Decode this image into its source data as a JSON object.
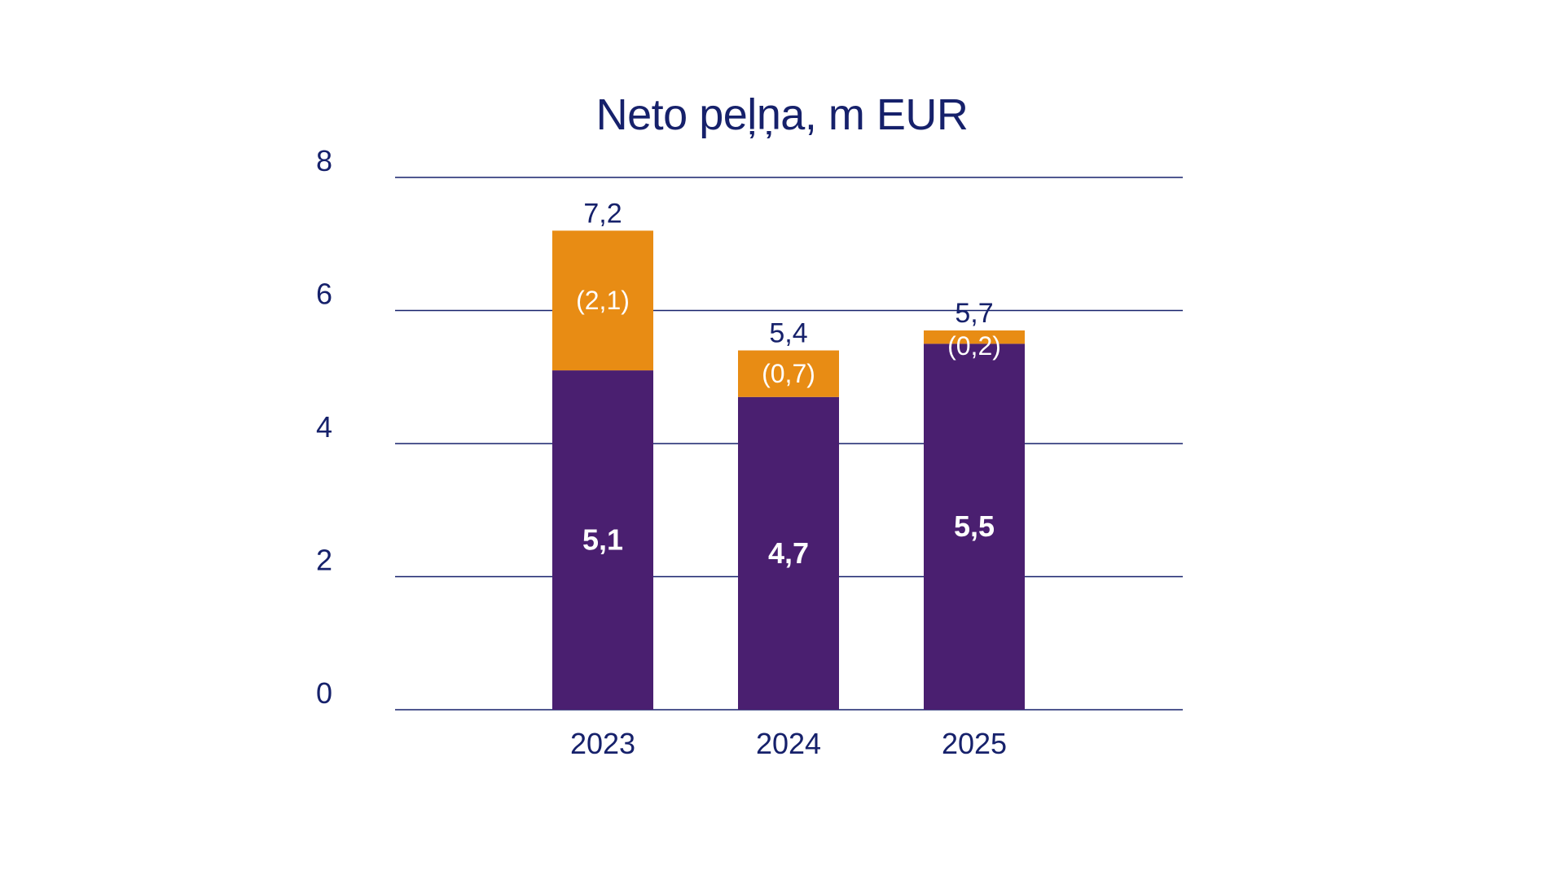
{
  "colors": {
    "text": "#16216b",
    "gridline": "#16216b",
    "base_bar": "#4a1f70",
    "top_bar": "#e88c14",
    "background": "#ffffff"
  },
  "chart_data": {
    "type": "bar",
    "stacked": true,
    "title": "Neto peļņa, m EUR",
    "xlabel": "",
    "ylabel": "",
    "ylim": [
      0,
      8
    ],
    "y_ticks": [
      0,
      2,
      4,
      6,
      8
    ],
    "y_tick_labels": [
      "0",
      "2",
      "4",
      "6",
      "8"
    ],
    "grid": true,
    "categories": [
      "2023",
      "2024",
      "2025"
    ],
    "series": [
      {
        "values": [
          5.1,
          4.7,
          5.5
        ],
        "labels": [
          "5,1",
          "4,7",
          "5,5"
        ],
        "color": "#4a1f70"
      },
      {
        "values": [
          2.1,
          0.7,
          0.2
        ],
        "labels": [
          "(2,1)",
          "(0,7)",
          "(0,2)"
        ],
        "color": "#e88c14"
      }
    ],
    "totals": [
      7.2,
      5.4,
      5.7
    ],
    "total_labels": [
      "7,2",
      "5,4",
      "5,7"
    ]
  }
}
